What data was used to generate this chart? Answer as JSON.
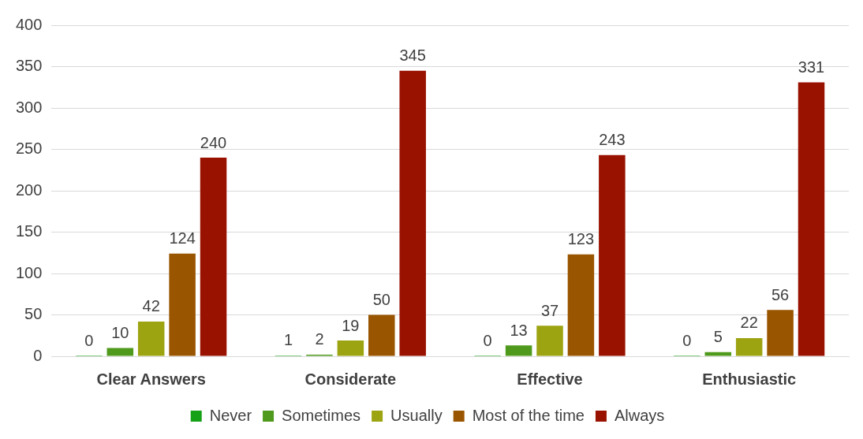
{
  "chart_data": {
    "type": "bar",
    "categories": [
      "Clear Answers",
      "Considerate",
      "Effective",
      "Enthusiastic"
    ],
    "series": [
      {
        "name": "Never",
        "color": "#17a117",
        "values": [
          0,
          1,
          0,
          0
        ]
      },
      {
        "name": "Sometimes",
        "color": "#4f9a1c",
        "values": [
          10,
          2,
          13,
          5
        ]
      },
      {
        "name": "Usually",
        "color": "#9da412",
        "values": [
          42,
          19,
          37,
          22
        ]
      },
      {
        "name": "Most of the time",
        "color": "#9a5500",
        "values": [
          124,
          50,
          123,
          56
        ]
      },
      {
        "name": "Always",
        "color": "#991200",
        "values": [
          240,
          345,
          243,
          331
        ]
      }
    ],
    "ylim": [
      0,
      400
    ],
    "yticks": [
      0,
      50,
      100,
      150,
      200,
      250,
      300,
      350,
      400
    ],
    "grid": "y",
    "legend": "bottom",
    "data_labels": true
  }
}
